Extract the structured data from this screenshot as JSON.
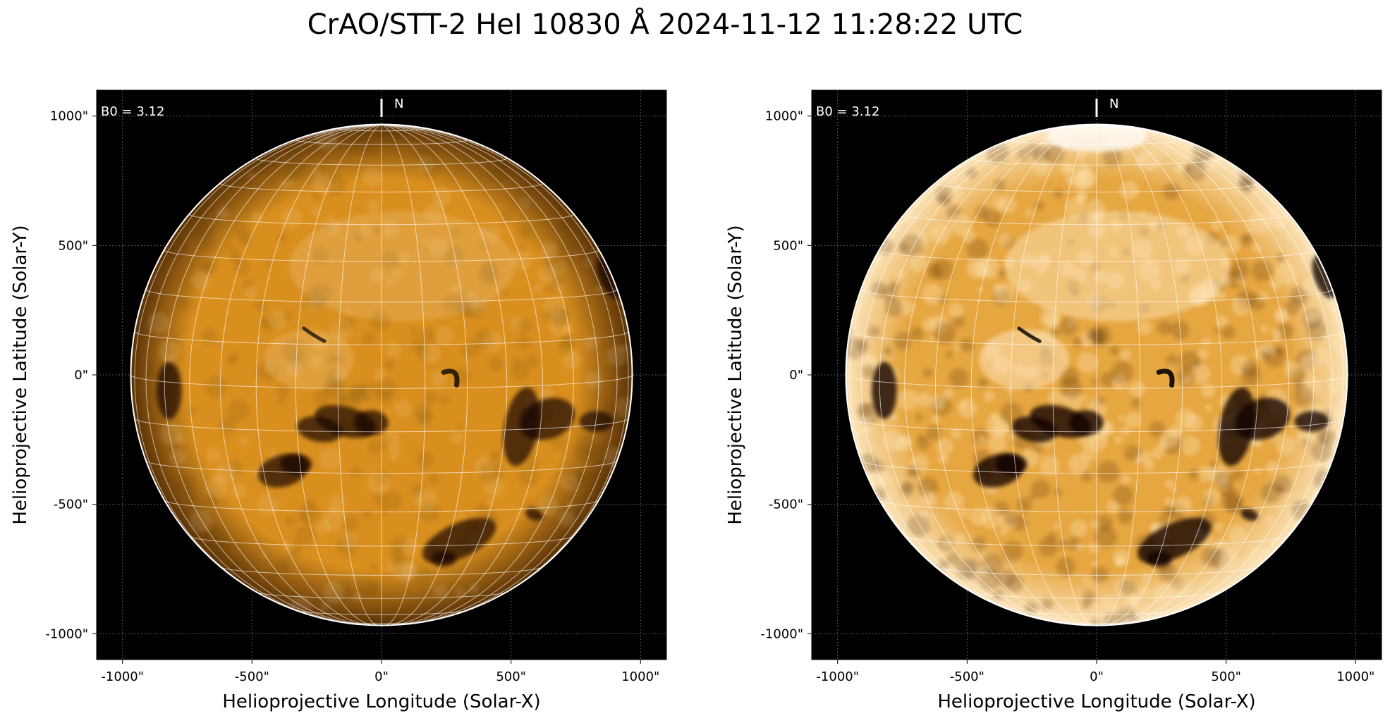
{
  "figure": {
    "title": "CrAO/STT-2 HeI 10830 Å 2024-11-12 11:28:22 UTC"
  },
  "axes_common": {
    "xlabel": "Helioprojective Longitude (Solar-X)",
    "ylabel": "Helioprojective Latitude (Solar-Y)",
    "xticks": [
      -1000,
      -500,
      0,
      500,
      1000
    ],
    "yticks": [
      1000,
      500,
      0,
      -500,
      -1000
    ],
    "xtick_labels": [
      "-1000\"",
      "-500\"",
      "0\"",
      "500\"",
      "1000\""
    ],
    "ytick_labels": [
      "1000\"",
      "500\"",
      "0\"",
      "-500\"",
      "-1000\""
    ],
    "xlim": [
      -1100,
      1100
    ],
    "ylim": [
      -1100,
      1100
    ],
    "solar_radius_arcsec": 968,
    "b0_label": "B0 = 3.12",
    "north_label": "N"
  },
  "panels": [
    {
      "id": "left",
      "contrast": "normal",
      "disk_color": "#d98f1e",
      "limb_color": "#5a3206"
    },
    {
      "id": "right",
      "contrast": "enhanced",
      "disk_color": "#e6a640",
      "limb_color": "#fbe3b8"
    }
  ],
  "colors": {
    "background": "#000000",
    "grid": "#ffffff",
    "limb": "#ffffff",
    "dark_feature": "#0a0500"
  }
}
